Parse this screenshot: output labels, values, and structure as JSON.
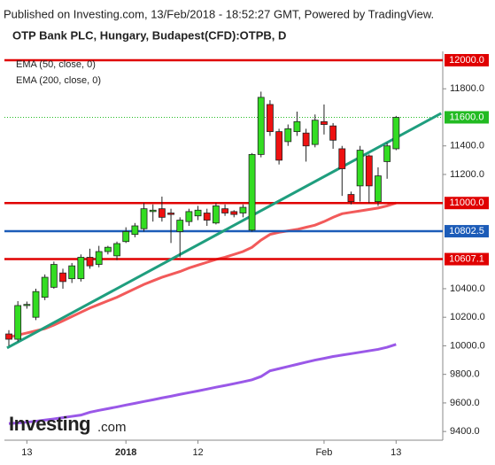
{
  "chart_data": {
    "type": "candlestick",
    "subtitle": "Published on Investing.com, 13/Feb/2018 - 18:52:27 GMT, Powered by TradingView.",
    "title": "OTP Bank PLC, Hungary, Budapest(CFD):OTPB, D",
    "brand": "Investing",
    "brand_suffix": ".com",
    "categories": [
      null,
      null,
      "13",
      null,
      null,
      null,
      null,
      null,
      null,
      null,
      null,
      null,
      null,
      "2018",
      null,
      null,
      null,
      null,
      null,
      null,
      null,
      "12",
      null,
      null,
      null,
      null,
      null,
      null,
      null,
      null,
      null,
      null,
      null,
      null,
      null,
      "Feb",
      null,
      null,
      null,
      null,
      null,
      null,
      null,
      "13"
    ],
    "open": [
      10083,
      10046,
      10282,
      10200,
      10340,
      10410,
      10510,
      10470,
      10470,
      10620,
      10570,
      10660,
      10630,
      10730,
      10780,
      10820,
      10940,
      10960,
      10930,
      10800,
      10870,
      10910,
      10930,
      10860,
      10960,
      10940,
      10930,
      10810,
      11340,
      11690,
      11500,
      11430,
      11500,
      11490,
      11410,
      11570,
      11540,
      11380,
      11060,
      11120,
      11330,
      11010,
      11290,
      11380
    ],
    "high": [
      10110,
      10313,
      10310,
      10400,
      10500,
      10590,
      10540,
      10580,
      10640,
      10680,
      10700,
      10700,
      10730,
      10830,
      10860,
      11000,
      10990,
      11045,
      10960,
      10900,
      10960,
      10980,
      10960,
      11000,
      10990,
      10950,
      10990,
      11350,
      11780,
      11720,
      11520,
      11550,
      11640,
      11520,
      11620,
      11690,
      11560,
      11400,
      11080,
      11400,
      11340,
      11250,
      11420,
      11610
    ],
    "low": [
      10000,
      10030,
      10260,
      10180,
      10320,
      10400,
      10400,
      10440,
      10450,
      10540,
      10550,
      10640,
      10600,
      10720,
      10760,
      10800,
      10870,
      10870,
      10720,
      10620,
      10840,
      10880,
      10840,
      10850,
      10910,
      10900,
      10900,
      10800,
      11320,
      11470,
      11270,
      11400,
      11470,
      11290,
      11390,
      11480,
      11380,
      11050,
      10990,
      11010,
      11000,
      10980,
      11170,
      11370
    ],
    "close": [
      10046,
      10282,
      10290,
      10380,
      10480,
      10570,
      10450,
      10560,
      10620,
      10560,
      10660,
      10690,
      10716,
      10800,
      10840,
      10960,
      10950,
      10900,
      10920,
      10880,
      10940,
      10950,
      10880,
      10980,
      10930,
      10920,
      10970,
      11340,
      11740,
      11500,
      11300,
      11520,
      11570,
      11400,
      11580,
      11550,
      11440,
      11240,
      11010,
      11370,
      11120,
      11190,
      11400,
      11600
    ],
    "up_color": "#33dd22",
    "down_color": "#ee1111",
    "series": [
      {
        "name": "EMA (50, close, 0)",
        "color": "#f25a5a",
        "values": [
          10060,
          10075,
          10090,
          10105,
          10120,
          10145,
          10175,
          10205,
          10235,
          10265,
          10290,
          10315,
          10340,
          10370,
          10400,
          10430,
          10455,
          10480,
          10500,
          10520,
          10545,
          10565,
          10585,
          10605,
          10620,
          10640,
          10660,
          10690,
          10740,
          10780,
          10795,
          10805,
          10815,
          10830,
          10845,
          10870,
          10900,
          10925,
          10935,
          10945,
          10955,
          10965,
          10980,
          11000
        ]
      },
      {
        "name": "EMA (200, close, 0)",
        "color": "#9a58e8",
        "values": [
          9455,
          9460,
          9465,
          9472,
          9480,
          9488,
          9497,
          9506,
          9515,
          9535,
          9548,
          9560,
          9572,
          9585,
          9597,
          9610,
          9622,
          9635,
          9647,
          9660,
          9672,
          9684,
          9697,
          9710,
          9722,
          9735,
          9748,
          9762,
          9785,
          9825,
          9840,
          9855,
          9870,
          9885,
          9900,
          9912,
          9925,
          9935,
          9945,
          9955,
          9965,
          9975,
          9990,
          10010
        ]
      }
    ],
    "levels": [
      {
        "value": 12000,
        "label": "12000.0",
        "color": "#e00000",
        "style": "solid"
      },
      {
        "value": 11600,
        "label": "11600.0",
        "color": "#22bb22",
        "style": "dotted"
      },
      {
        "value": 11000,
        "label": "11000.0",
        "color": "#e00000",
        "style": "solid"
      },
      {
        "value": 10802.5,
        "label": "10802.5",
        "color": "#1c5cb8",
        "style": "solid"
      },
      {
        "value": 10607.1,
        "label": "10607.1",
        "color": "#e00000",
        "style": "solid"
      }
    ],
    "trendline": {
      "x": [
        -0.2,
        48
      ],
      "values": [
        9985,
        11628
      ],
      "color": "#1f9e7e"
    },
    "ylim": [
      9339,
      12062
    ],
    "yticks": [
      {
        "value": 11800,
        "label": "11800.0"
      },
      {
        "value": 11400,
        "label": "11400.0"
      },
      {
        "value": 11200,
        "label": "11200.0"
      },
      {
        "value": 10400,
        "label": "10400.0"
      },
      {
        "value": 10200,
        "label": "10200.0"
      },
      {
        "value": 10000,
        "label": "10000.0"
      },
      {
        "value": 9800,
        "label": "9800.0"
      },
      {
        "value": 9600,
        "label": "9600.0"
      },
      {
        "value": 9400,
        "label": "9400.0"
      }
    ]
  }
}
